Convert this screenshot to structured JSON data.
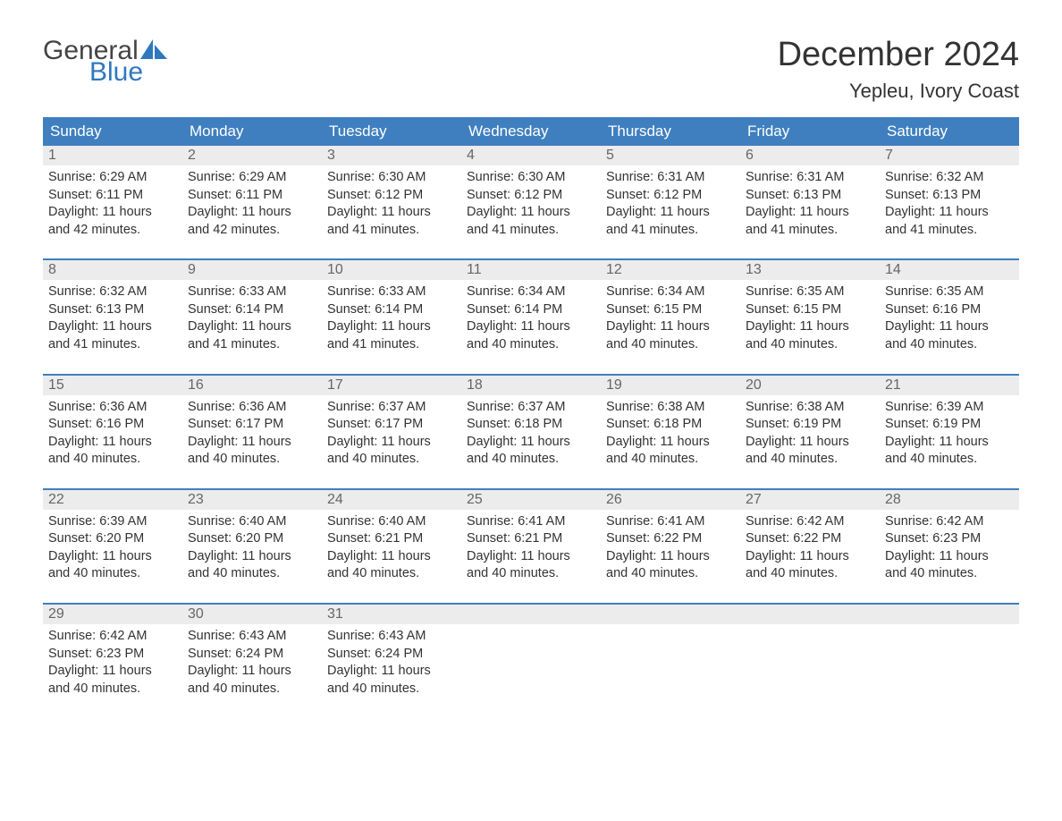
{
  "logo": {
    "text_general": "General",
    "text_blue": "Blue",
    "sail_color": "#2f78bf",
    "general_color": "#444444"
  },
  "header": {
    "month_title": "December 2024",
    "location": "Yepleu, Ivory Coast"
  },
  "colors": {
    "header_bg": "#3f7fbf",
    "header_text": "#ffffff",
    "daynum_bg": "#ececec",
    "daynum_text": "#666666",
    "body_text": "#333333",
    "week_border": "#3f7fbf",
    "page_bg": "#ffffff"
  },
  "day_headers": [
    "Sunday",
    "Monday",
    "Tuesday",
    "Wednesday",
    "Thursday",
    "Friday",
    "Saturday"
  ],
  "labels": {
    "sunrise_prefix": "Sunrise: ",
    "sunset_prefix": "Sunset: ",
    "daylight_prefix": "Daylight: ",
    "minutes_suffix": " minutes."
  },
  "weeks": [
    [
      {
        "num": "1",
        "sunrise": "6:29 AM",
        "sunset": "6:11 PM",
        "daylight_h": "11 hours",
        "daylight_m": "and 42"
      },
      {
        "num": "2",
        "sunrise": "6:29 AM",
        "sunset": "6:11 PM",
        "daylight_h": "11 hours",
        "daylight_m": "and 42"
      },
      {
        "num": "3",
        "sunrise": "6:30 AM",
        "sunset": "6:12 PM",
        "daylight_h": "11 hours",
        "daylight_m": "and 41"
      },
      {
        "num": "4",
        "sunrise": "6:30 AM",
        "sunset": "6:12 PM",
        "daylight_h": "11 hours",
        "daylight_m": "and 41"
      },
      {
        "num": "5",
        "sunrise": "6:31 AM",
        "sunset": "6:12 PM",
        "daylight_h": "11 hours",
        "daylight_m": "and 41"
      },
      {
        "num": "6",
        "sunrise": "6:31 AM",
        "sunset": "6:13 PM",
        "daylight_h": "11 hours",
        "daylight_m": "and 41"
      },
      {
        "num": "7",
        "sunrise": "6:32 AM",
        "sunset": "6:13 PM",
        "daylight_h": "11 hours",
        "daylight_m": "and 41"
      }
    ],
    [
      {
        "num": "8",
        "sunrise": "6:32 AM",
        "sunset": "6:13 PM",
        "daylight_h": "11 hours",
        "daylight_m": "and 41"
      },
      {
        "num": "9",
        "sunrise": "6:33 AM",
        "sunset": "6:14 PM",
        "daylight_h": "11 hours",
        "daylight_m": "and 41"
      },
      {
        "num": "10",
        "sunrise": "6:33 AM",
        "sunset": "6:14 PM",
        "daylight_h": "11 hours",
        "daylight_m": "and 41"
      },
      {
        "num": "11",
        "sunrise": "6:34 AM",
        "sunset": "6:14 PM",
        "daylight_h": "11 hours",
        "daylight_m": "and 40"
      },
      {
        "num": "12",
        "sunrise": "6:34 AM",
        "sunset": "6:15 PM",
        "daylight_h": "11 hours",
        "daylight_m": "and 40"
      },
      {
        "num": "13",
        "sunrise": "6:35 AM",
        "sunset": "6:15 PM",
        "daylight_h": "11 hours",
        "daylight_m": "and 40"
      },
      {
        "num": "14",
        "sunrise": "6:35 AM",
        "sunset": "6:16 PM",
        "daylight_h": "11 hours",
        "daylight_m": "and 40"
      }
    ],
    [
      {
        "num": "15",
        "sunrise": "6:36 AM",
        "sunset": "6:16 PM",
        "daylight_h": "11 hours",
        "daylight_m": "and 40"
      },
      {
        "num": "16",
        "sunrise": "6:36 AM",
        "sunset": "6:17 PM",
        "daylight_h": "11 hours",
        "daylight_m": "and 40"
      },
      {
        "num": "17",
        "sunrise": "6:37 AM",
        "sunset": "6:17 PM",
        "daylight_h": "11 hours",
        "daylight_m": "and 40"
      },
      {
        "num": "18",
        "sunrise": "6:37 AM",
        "sunset": "6:18 PM",
        "daylight_h": "11 hours",
        "daylight_m": "and 40"
      },
      {
        "num": "19",
        "sunrise": "6:38 AM",
        "sunset": "6:18 PM",
        "daylight_h": "11 hours",
        "daylight_m": "and 40"
      },
      {
        "num": "20",
        "sunrise": "6:38 AM",
        "sunset": "6:19 PM",
        "daylight_h": "11 hours",
        "daylight_m": "and 40"
      },
      {
        "num": "21",
        "sunrise": "6:39 AM",
        "sunset": "6:19 PM",
        "daylight_h": "11 hours",
        "daylight_m": "and 40"
      }
    ],
    [
      {
        "num": "22",
        "sunrise": "6:39 AM",
        "sunset": "6:20 PM",
        "daylight_h": "11 hours",
        "daylight_m": "and 40"
      },
      {
        "num": "23",
        "sunrise": "6:40 AM",
        "sunset": "6:20 PM",
        "daylight_h": "11 hours",
        "daylight_m": "and 40"
      },
      {
        "num": "24",
        "sunrise": "6:40 AM",
        "sunset": "6:21 PM",
        "daylight_h": "11 hours",
        "daylight_m": "and 40"
      },
      {
        "num": "25",
        "sunrise": "6:41 AM",
        "sunset": "6:21 PM",
        "daylight_h": "11 hours",
        "daylight_m": "and 40"
      },
      {
        "num": "26",
        "sunrise": "6:41 AM",
        "sunset": "6:22 PM",
        "daylight_h": "11 hours",
        "daylight_m": "and 40"
      },
      {
        "num": "27",
        "sunrise": "6:42 AM",
        "sunset": "6:22 PM",
        "daylight_h": "11 hours",
        "daylight_m": "and 40"
      },
      {
        "num": "28",
        "sunrise": "6:42 AM",
        "sunset": "6:23 PM",
        "daylight_h": "11 hours",
        "daylight_m": "and 40"
      }
    ],
    [
      {
        "num": "29",
        "sunrise": "6:42 AM",
        "sunset": "6:23 PM",
        "daylight_h": "11 hours",
        "daylight_m": "and 40"
      },
      {
        "num": "30",
        "sunrise": "6:43 AM",
        "sunset": "6:24 PM",
        "daylight_h": "11 hours",
        "daylight_m": "and 40"
      },
      {
        "num": "31",
        "sunrise": "6:43 AM",
        "sunset": "6:24 PM",
        "daylight_h": "11 hours",
        "daylight_m": "and 40"
      },
      null,
      null,
      null,
      null
    ]
  ]
}
